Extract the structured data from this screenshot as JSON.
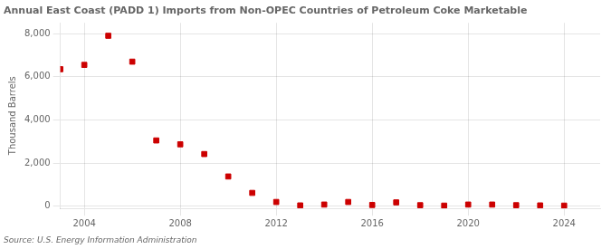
{
  "chart_data": {
    "type": "scatter",
    "title": "Annual East Coast (PADD 1) Imports from Non-OPEC Countries of Petroleum Coke Marketable",
    "ylabel": "Thousand Barrels",
    "source": "Source: U.S. Energy Information Administration",
    "x": [
      2003,
      2004,
      2005,
      2006,
      2007,
      2008,
      2009,
      2010,
      2011,
      2012,
      2013,
      2014,
      2015,
      2016,
      2017,
      2018,
      2019,
      2020,
      2021,
      2022,
      2023,
      2024
    ],
    "values": [
      6350,
      6550,
      7900,
      6700,
      3050,
      2870,
      2420,
      1380,
      620,
      200,
      40,
      80,
      200,
      60,
      180,
      50,
      30,
      80,
      80,
      50,
      40,
      30
    ],
    "color": "#cc0000",
    "marker": "square",
    "xlim": [
      2003.0,
      2025.5
    ],
    "xticks": [
      2004,
      2008,
      2012,
      2016,
      2020,
      2024
    ],
    "ylim": [
      -100,
      8500
    ],
    "yticks": [
      0,
      {
        "value": 2000,
        "label": "2,000"
      },
      {
        "value": 4000,
        "label": "4,000"
      },
      {
        "value": 6000,
        "label": "6,000"
      },
      {
        "value": 8000,
        "label": "8,000"
      }
    ],
    "grid": true
  }
}
